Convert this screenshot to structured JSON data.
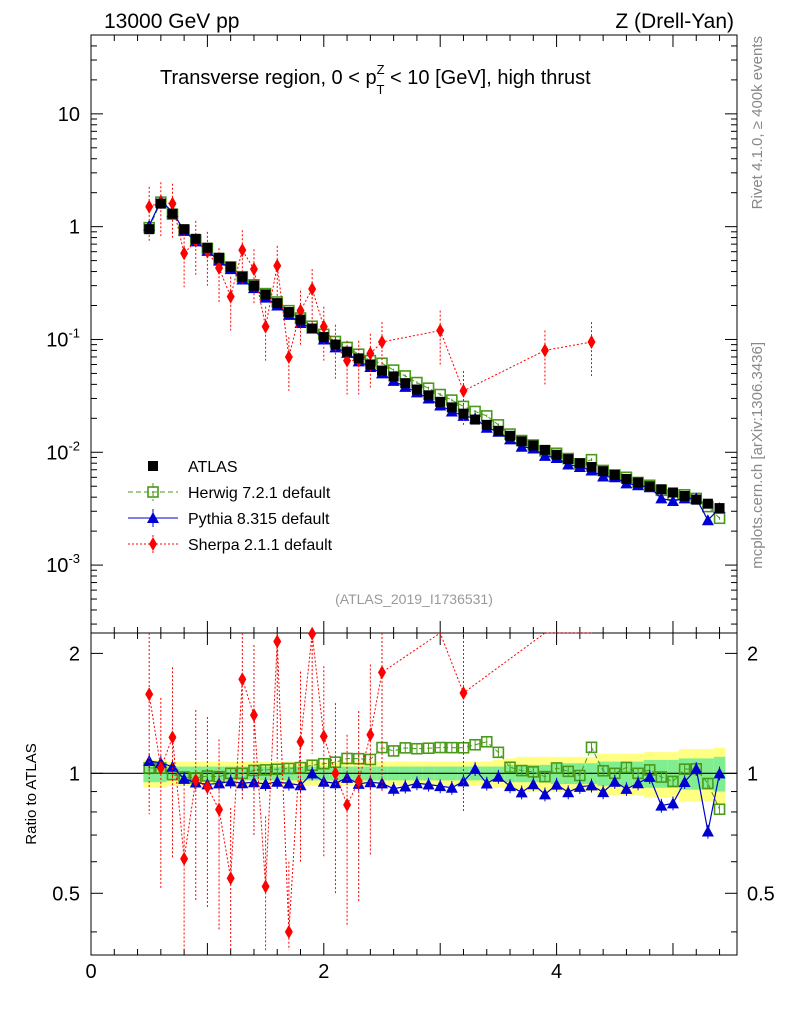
{
  "header": {
    "left": "13000 GeV pp",
    "right": "Z (Drell-Yan)",
    "side_rivet": "Rivet 4.1.0, ≥ 400k events",
    "side_site": "mcplots.cern.ch [arXiv:1306.3436]",
    "analysis_tag": "(ATLAS_2019_I1736531)"
  },
  "chart_data": {
    "type": "scatter",
    "title": "Transverse region, 0 < p_T^Z < 10 [GeV], high thrust",
    "title_parts": [
      "Transverse region, 0 < p",
      "Z",
      "T",
      " < 10 [GeV], high thrust"
    ],
    "xlabel": "",
    "ylabel_ratio": "Ratio to ATLAS",
    "xlim": [
      0,
      5.55
    ],
    "ylim_main": [
      0.00025,
      50
    ],
    "ylim_ratio": [
      0.35,
      2.25
    ],
    "x_ticks": [
      "0",
      "2",
      "4"
    ],
    "y_ticks_main": [
      "10",
      "1",
      "10^-1",
      "10^-2",
      "10^-3"
    ],
    "y_ticks_ratio": [
      "2",
      "1",
      "0.5"
    ],
    "legend": [
      {
        "label": "ATLAS",
        "key": "atlas"
      },
      {
        "label": "Herwig 7.2.1 default",
        "key": "herwig"
      },
      {
        "label": "Pythia 8.315 default",
        "key": "pythia"
      },
      {
        "label": "Sherpa 2.1.1 default",
        "key": "sherpa"
      }
    ],
    "x": [
      0.5,
      0.6,
      0.7,
      0.8,
      0.9,
      1.0,
      1.1,
      1.2,
      1.3,
      1.4,
      1.5,
      1.6,
      1.7,
      1.8,
      1.9,
      2.0,
      2.1,
      2.2,
      2.3,
      2.4,
      2.5,
      2.6,
      2.7,
      2.8,
      2.9,
      3.0,
      3.1,
      3.2,
      3.3,
      3.4,
      3.5,
      3.6,
      3.7,
      3.8,
      3.9,
      4.0,
      4.1,
      4.2,
      4.3,
      4.4,
      4.5,
      4.6,
      4.7,
      4.8,
      4.9,
      5.0,
      5.1,
      5.2,
      5.3,
      5.4
    ],
    "series": [
      {
        "name": "ATLAS",
        "key": "atlas",
        "color": "#000000",
        "values": [
          0.95,
          1.6,
          1.3,
          0.95,
          0.78,
          0.65,
          0.53,
          0.44,
          0.36,
          0.3,
          0.25,
          0.21,
          0.175,
          0.15,
          0.125,
          0.105,
          0.09,
          0.078,
          0.068,
          0.06,
          0.053,
          0.047,
          0.041,
          0.036,
          0.032,
          0.028,
          0.025,
          0.022,
          0.0195,
          0.0175,
          0.0155,
          0.014,
          0.0125,
          0.0115,
          0.0105,
          0.0095,
          0.0087,
          0.008,
          0.0074,
          0.0068,
          0.0063,
          0.0058,
          0.0054,
          0.005,
          0.0047,
          0.0044,
          0.0041,
          0.0038,
          0.0035,
          0.0032
        ]
      },
      {
        "name": "Herwig 7.2.1 default",
        "key": "herwig",
        "color": "#4a9a1a",
        "values": [
          0.98,
          1.65,
          1.29,
          0.93,
          0.76,
          0.64,
          0.52,
          0.44,
          0.36,
          0.305,
          0.255,
          0.215,
          0.18,
          0.155,
          0.131,
          0.111,
          0.096,
          0.085,
          0.074,
          0.065,
          0.0615,
          0.0535,
          0.0475,
          0.0415,
          0.037,
          0.0325,
          0.029,
          0.0255,
          0.023,
          0.021,
          0.0175,
          0.0145,
          0.0127,
          0.0116,
          0.0103,
          0.0098,
          0.0088,
          0.0079,
          0.0086,
          0.0069,
          0.0063,
          0.006,
          0.0054,
          0.0051,
          0.0046,
          0.0042,
          0.0042,
          0.0039,
          0.0033,
          0.0026
        ]
      },
      {
        "name": "Pythia 8.315 default",
        "key": "pythia",
        "color": "#0000d0",
        "values": [
          1.02,
          1.7,
          1.35,
          0.92,
          0.74,
          0.61,
          0.5,
          0.42,
          0.34,
          0.285,
          0.235,
          0.2,
          0.165,
          0.14,
          0.125,
          0.1,
          0.085,
          0.076,
          0.064,
          0.057,
          0.05,
          0.043,
          0.038,
          0.034,
          0.03,
          0.026,
          0.023,
          0.021,
          0.02,
          0.0165,
          0.0152,
          0.013,
          0.0112,
          0.0108,
          0.0093,
          0.0089,
          0.0078,
          0.0074,
          0.0069,
          0.0061,
          0.006,
          0.0053,
          0.0051,
          0.0049,
          0.0039,
          0.0037,
          0.0039,
          0.0039,
          0.0025,
          0.0032
        ]
      },
      {
        "name": "Sherpa 2.1.1 default",
        "key": "sherpa",
        "color": "#ff0000",
        "values": [
          1.5,
          1.65,
          1.6,
          0.58,
          0.75,
          0.6,
          0.43,
          0.24,
          0.62,
          0.42,
          0.13,
          0.45,
          0.07,
          0.18,
          0.28,
          0.13,
          0.09,
          0.065,
          0.065,
          0.075,
          0.095,
          null,
          null,
          null,
          null,
          0.12,
          null,
          0.035,
          null,
          null,
          null,
          null,
          null,
          null,
          0.08,
          null,
          null,
          null,
          0.095,
          null,
          null,
          null,
          null,
          null,
          null,
          null,
          null,
          null,
          null,
          null
        ]
      }
    ],
    "ratio_band": {
      "stat_syst_green": [
        0.05,
        0.05,
        0.04,
        0.04,
        0.04,
        0.04,
        0.04,
        0.04,
        0.04,
        0.04,
        0.04,
        0.04,
        0.04,
        0.04,
        0.04,
        0.04,
        0.04,
        0.04,
        0.04,
        0.04,
        0.04,
        0.04,
        0.04,
        0.04,
        0.04,
        0.04,
        0.04,
        0.04,
        0.04,
        0.04,
        0.04,
        0.05,
        0.05,
        0.05,
        0.05,
        0.06,
        0.06,
        0.06,
        0.06,
        0.07,
        0.07,
        0.07,
        0.07,
        0.08,
        0.08,
        0.08,
        0.09,
        0.09,
        0.09,
        0.1
      ],
      "total_yellow": [
        0.08,
        0.08,
        0.07,
        0.07,
        0.07,
        0.07,
        0.07,
        0.07,
        0.07,
        0.07,
        0.07,
        0.07,
        0.07,
        0.07,
        0.07,
        0.07,
        0.07,
        0.07,
        0.07,
        0.07,
        0.07,
        0.07,
        0.07,
        0.07,
        0.07,
        0.07,
        0.07,
        0.07,
        0.07,
        0.07,
        0.08,
        0.09,
        0.1,
        0.1,
        0.1,
        0.1,
        0.1,
        0.1,
        0.1,
        0.12,
        0.12,
        0.12,
        0.12,
        0.13,
        0.13,
        0.13,
        0.15,
        0.15,
        0.15,
        0.16
      ]
    }
  }
}
